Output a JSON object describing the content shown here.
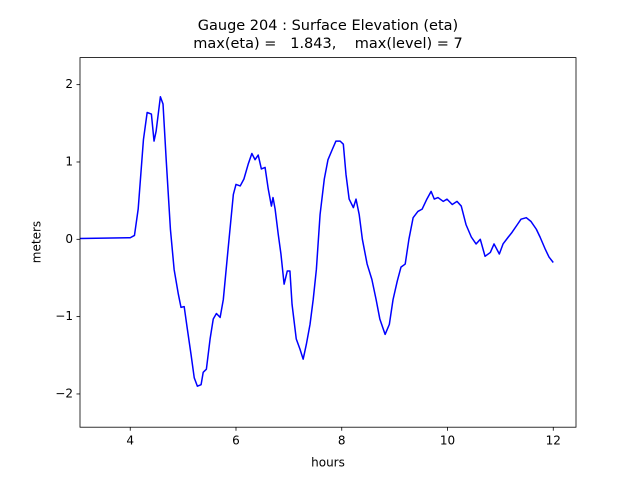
{
  "chart_data": {
    "type": "line",
    "title": [
      "Gauge 204 : Surface Elevation (eta)",
      "max(eta) =   1.843,    max(level) = 7"
    ],
    "x_label": "hours",
    "y_label": "meters",
    "xlim": [
      3.05,
      12.43
    ],
    "ylim": [
      -2.43,
      2.35
    ],
    "xticks": [
      4,
      6,
      8,
      10,
      12
    ],
    "yticks": [
      {
        "value": -2,
        "label": "−2"
      },
      {
        "value": -1,
        "label": "−1"
      },
      0,
      1,
      2
    ],
    "series": [
      {
        "color": "#0000ff",
        "x": [
          3.05,
          4.0,
          4.08,
          4.15,
          4.25,
          4.32,
          4.4,
          4.45,
          4.49,
          4.57,
          4.62,
          4.68,
          4.76,
          4.83,
          4.91,
          4.96,
          5.02,
          5.08,
          5.15,
          5.21,
          5.27,
          5.34,
          5.38,
          5.44,
          5.51,
          5.57,
          5.63,
          5.7,
          5.76,
          5.85,
          5.95,
          6.0,
          6.08,
          6.15,
          6.23,
          6.3,
          6.36,
          6.42,
          6.48,
          6.55,
          6.61,
          6.67,
          6.7,
          6.74,
          6.8,
          6.85,
          6.91,
          6.97,
          7.02,
          7.06,
          7.14,
          7.21,
          7.27,
          7.33,
          7.4,
          7.46,
          7.52,
          7.59,
          7.67,
          7.74,
          7.82,
          7.89,
          7.97,
          8.03,
          8.08,
          8.14,
          8.22,
          8.27,
          8.33,
          8.39,
          8.48,
          8.57,
          8.65,
          8.72,
          8.82,
          8.9,
          8.97,
          9.05,
          9.12,
          9.2,
          9.27,
          9.35,
          9.44,
          9.52,
          9.61,
          9.69,
          9.75,
          9.82,
          9.92,
          9.99,
          10.09,
          10.18,
          10.26,
          10.35,
          10.45,
          10.54,
          10.62,
          10.71,
          10.81,
          10.88,
          10.98,
          11.05,
          11.15,
          11.22,
          11.32,
          11.39,
          11.49,
          11.58,
          11.68,
          11.75,
          11.85,
          11.92,
          12.0
        ],
        "values": [
          0.01,
          0.02,
          0.05,
          0.39,
          1.29,
          1.64,
          1.62,
          1.27,
          1.4,
          1.843,
          1.75,
          1.03,
          0.13,
          -0.39,
          -0.71,
          -0.88,
          -0.87,
          -1.16,
          -1.49,
          -1.79,
          -1.9,
          -1.88,
          -1.72,
          -1.68,
          -1.29,
          -1.03,
          -0.96,
          -1.01,
          -0.78,
          -0.13,
          0.58,
          0.71,
          0.69,
          0.78,
          0.97,
          1.11,
          1.03,
          1.09,
          0.91,
          0.93,
          0.65,
          0.43,
          0.54,
          0.39,
          0.06,
          -0.19,
          -0.58,
          -0.41,
          -0.41,
          -0.84,
          -1.29,
          -1.42,
          -1.55,
          -1.36,
          -1.1,
          -0.78,
          -0.39,
          0.32,
          0.78,
          1.03,
          1.16,
          1.27,
          1.27,
          1.23,
          0.84,
          0.52,
          0.41,
          0.52,
          0.32,
          0.0,
          -0.32,
          -0.52,
          -0.78,
          -1.03,
          -1.23,
          -1.1,
          -0.78,
          -0.54,
          -0.36,
          -0.32,
          0.0,
          0.28,
          0.36,
          0.39,
          0.52,
          0.62,
          0.52,
          0.54,
          0.49,
          0.52,
          0.45,
          0.49,
          0.43,
          0.19,
          0.03,
          -0.06,
          0.0,
          -0.22,
          -0.17,
          -0.06,
          -0.19,
          -0.06,
          0.03,
          0.09,
          0.19,
          0.26,
          0.28,
          0.23,
          0.13,
          0.03,
          -0.13,
          -0.23,
          -0.3
        ]
      }
    ]
  }
}
